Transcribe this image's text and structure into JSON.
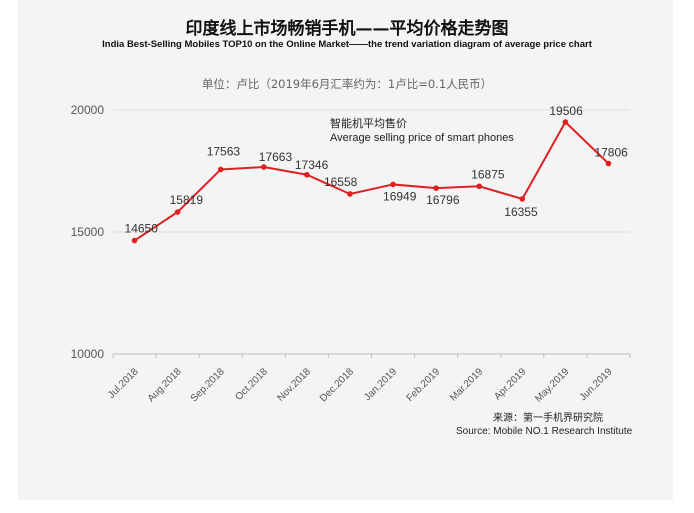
{
  "chart_data": {
    "type": "line",
    "title": "印度线上市场畅销手机——平均价格走势图",
    "subtitle": "India Best-Selling  Mobiles TOP10 on the Online Market——the trend variation diagram of average price chart",
    "unit_note": "单位：卢比（2019年6月汇率约为：1卢比=0.1人民币）",
    "categories": [
      "Jul.2018",
      "Aug.2018",
      "Sep.2018",
      "Oct.2018",
      "Nov.2018",
      "Dec.2018",
      "Jan.2019",
      "Feb.2019",
      "Mar.2019",
      "Apr.2019",
      "May.2019",
      "Jun.2019"
    ],
    "series": [
      {
        "name": "智能机平均售价 / Average selling price of smart phones",
        "values": [
          14650,
          15819,
          17563,
          17663,
          17346,
          16558,
          16949,
          16796,
          16875,
          16355,
          19506,
          17806
        ]
      }
    ],
    "data_labels": [
      "14650",
      "15819",
      "17563",
      "17663",
      "17346",
      "16558",
      "16949",
      "16796",
      "16875",
      "16355",
      "19506",
      "17806"
    ],
    "ylim": [
      10000,
      20000
    ],
    "yticks": [
      "10000",
      "15000",
      "20000"
    ],
    "legend": {
      "cn": "智能机平均售价",
      "en": "Average selling price of smart phones",
      "position": "top-center"
    },
    "grid": true,
    "source_cn": "来源：第一手机界研究院",
    "source_en": "Source: Mobile NO.1 Research Institute",
    "line_color": "#e02020"
  }
}
